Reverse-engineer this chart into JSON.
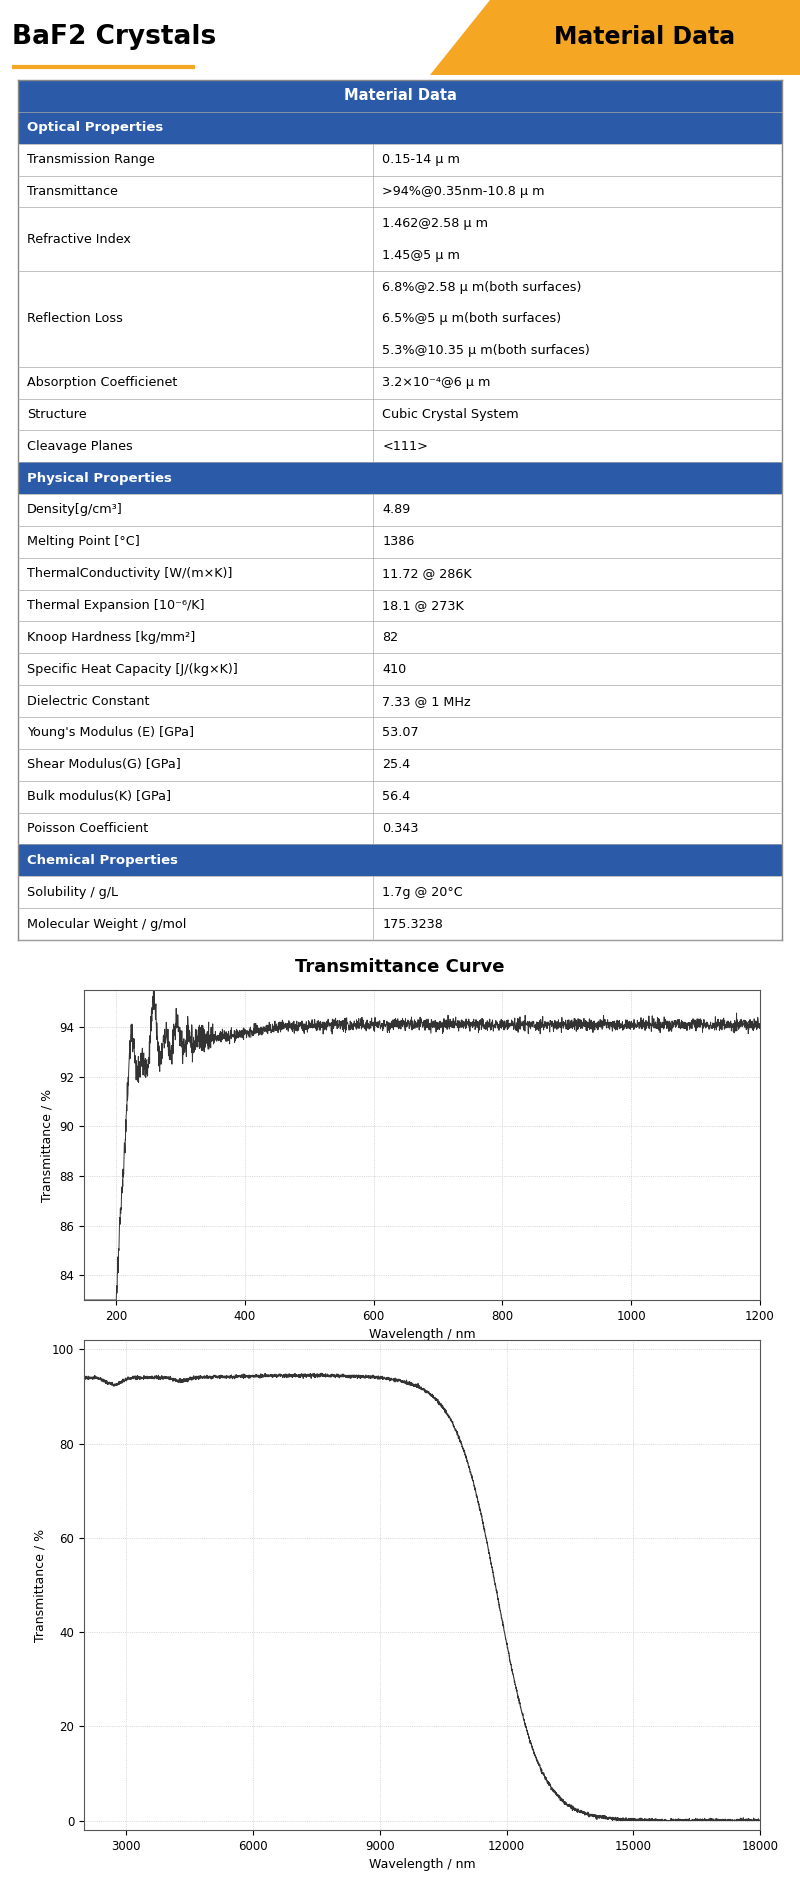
{
  "title": "BaF2 Crystals",
  "title_badge": "Material Data",
  "header_color": "#2B5BA8",
  "orange_color": "#F5A623",
  "table_header": "Material Data",
  "rows": [
    {
      "section": "Optical Properties"
    },
    {
      "property": "Transmission Range",
      "value": "0.15-14 μ m"
    },
    {
      "property": "Transmittance",
      "value": ">94%@0.35nm-10.8 μ m"
    },
    {
      "property": "Refractive Index",
      "value": "1.462@2.58 μ m\n1.45@5 μ m"
    },
    {
      "property": "Reflection Loss",
      "value": "6.8%@2.58 μ m(both surfaces)\n6.5%@5 μ m(both surfaces)\n5.3%@10.35 μ m(both surfaces)"
    },
    {
      "property": "Absorption Coefficienet",
      "value": "3.2×10⁻⁴@6 μ m"
    },
    {
      "property": "Structure",
      "value": "Cubic Crystal System"
    },
    {
      "property": "Cleavage Planes",
      "value": "<111>"
    },
    {
      "section": "Physical Properties"
    },
    {
      "property": "Density[g/cm³]",
      "value": "4.89"
    },
    {
      "property": "Melting Point [°C]",
      "value": "1386"
    },
    {
      "property": "ThermalConductivity [W/(m×K)]",
      "value": "11.72 @ 286K"
    },
    {
      "property": "Thermal Expansion [10⁻⁶/K]",
      "value": "18.1 @ 273K"
    },
    {
      "property": "Knoop Hardness [kg/mm²]",
      "value": "82"
    },
    {
      "property": "Specific Heat Capacity [J/(kg×K)]",
      "value": "410"
    },
    {
      "property": "Dielectric Constant",
      "value": "7.33 @ 1 MHz"
    },
    {
      "property": "Young's Modulus (E) [GPa]",
      "value": "53.07"
    },
    {
      "property": "Shear Modulus(G) [GPa]",
      "value": "25.4"
    },
    {
      "property": "Bulk modulus(K) [GPa]",
      "value": "56.4"
    },
    {
      "property": "Poisson Coefficient",
      "value": "0.343"
    },
    {
      "section": "Chemical Properties"
    },
    {
      "property": "Solubility / g/L",
      "value": "1.7g @ 20°C"
    },
    {
      "property": "Molecular Weight / g/mol",
      "value": "175.3238"
    }
  ],
  "chart_title": "Transmittance Curve",
  "c1_xlabel": "Wavelength / nm",
  "c1_ylabel": "Transmittance / %",
  "c1_xlim": [
    150,
    1200
  ],
  "c1_ylim": [
    83,
    95.5
  ],
  "c1_yticks": [
    84,
    86,
    88,
    90,
    92,
    94
  ],
  "c1_xticks": [
    200,
    400,
    600,
    800,
    1000,
    1200
  ],
  "c2_xlabel": "Wavelength / nm",
  "c2_ylabel": "Transmittance / %",
  "c2_xlim": [
    2000,
    18000
  ],
  "c2_ylim": [
    -2,
    102
  ],
  "c2_yticks": [
    0,
    20,
    40,
    60,
    80,
    100
  ],
  "c2_xticks": [
    3000,
    6000,
    9000,
    12000,
    15000,
    18000
  ],
  "line_color": "#333333"
}
